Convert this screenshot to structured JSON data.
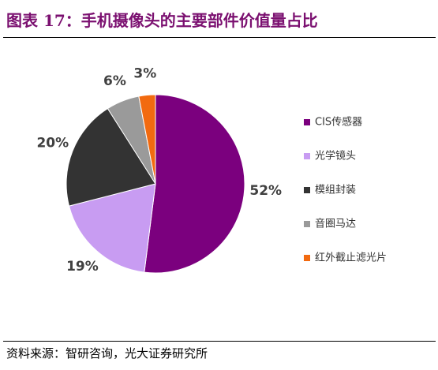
{
  "header": {
    "title": "图表 17：手机摄像头的主要部件价值量占比"
  },
  "chart_data": {
    "type": "pie",
    "categories": [
      "CIS传感器",
      "光学镜头",
      "模组封装",
      "音圈马达",
      "红外截止滤光片"
    ],
    "values": [
      52,
      19,
      20,
      6,
      3
    ],
    "value_labels": [
      "52%",
      "19%",
      "20%",
      "6%",
      "3%"
    ],
    "colors": [
      "#7B007E",
      "#C89CF2",
      "#333333",
      "#9A9A9A",
      "#F26A10"
    ]
  },
  "footer": {
    "source": "资料来源：智研咨询，光大证券研究所"
  }
}
